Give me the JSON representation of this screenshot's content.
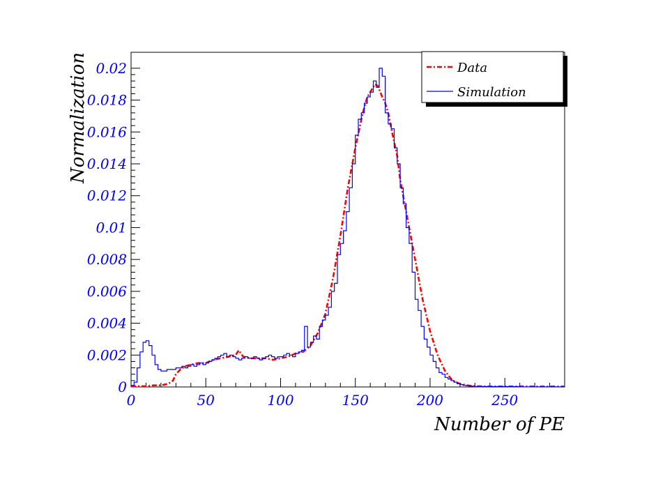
{
  "chart_data": {
    "type": "line",
    "title": "",
    "xlabel": "Number of PE",
    "ylabel": "Normalization",
    "xlim": [
      0,
      290
    ],
    "ylim": [
      0,
      0.021
    ],
    "x_ticks": [
      "0",
      "50",
      "100",
      "150",
      "200",
      "250"
    ],
    "y_ticks": [
      "0",
      "0.002",
      "0.004",
      "0.006",
      "0.008",
      "0.01",
      "0.012",
      "0.014",
      "0.016",
      "0.018",
      "0.02"
    ],
    "legend_position": "top-right",
    "grid": false,
    "colors": {
      "tick_labels": "#0000ff",
      "data": "#ff0000",
      "simulation": "#0000ff"
    },
    "series": [
      {
        "name": "Data",
        "style": "dash-dot",
        "color": "#ff0000",
        "x": [
          0,
          5,
          10,
          15,
          20,
          25,
          28,
          30,
          33,
          36,
          40,
          45,
          50,
          55,
          60,
          65,
          70,
          72,
          75,
          80,
          85,
          90,
          95,
          100,
          105,
          110,
          115,
          120,
          125,
          130,
          135,
          140,
          145,
          150,
          155,
          158,
          160,
          163,
          165,
          168,
          170,
          172,
          175,
          178,
          180,
          185,
          190,
          195,
          200,
          205,
          210,
          215,
          220,
          225,
          230,
          240,
          250,
          260,
          270,
          280,
          290
        ],
        "y": [
          5e-05,
          5e-05,
          5e-05,
          0.0001,
          0.0001,
          0.0002,
          0.0004,
          0.0008,
          0.0011,
          0.0013,
          0.0014,
          0.0015,
          0.0015,
          0.0017,
          0.0018,
          0.0019,
          0.002,
          0.0023,
          0.0019,
          0.0018,
          0.0018,
          0.0018,
          0.0017,
          0.0018,
          0.0019,
          0.0021,
          0.0022,
          0.0026,
          0.0034,
          0.0046,
          0.0068,
          0.0095,
          0.0125,
          0.015,
          0.0172,
          0.0182,
          0.0185,
          0.019,
          0.0189,
          0.0182,
          0.0178,
          0.0172,
          0.0158,
          0.0145,
          0.013,
          0.0105,
          0.008,
          0.0055,
          0.0035,
          0.002,
          0.001,
          0.0004,
          0.0002,
          0.0001,
          5e-05,
          3e-05,
          3e-05,
          4e-05,
          3e-05,
          3e-05,
          3e-05
        ]
      },
      {
        "name": "Simulation",
        "style": "step",
        "color": "#0000ff",
        "x": [
          0,
          2,
          4,
          6,
          8,
          10,
          12,
          14,
          16,
          18,
          20,
          22,
          24,
          26,
          28,
          30,
          32,
          34,
          36,
          38,
          40,
          42,
          44,
          46,
          48,
          50,
          52,
          54,
          56,
          58,
          60,
          62,
          64,
          66,
          68,
          70,
          72,
          74,
          76,
          78,
          80,
          82,
          84,
          86,
          88,
          90,
          92,
          94,
          96,
          98,
          100,
          102,
          104,
          106,
          108,
          110,
          112,
          114,
          116,
          118,
          120,
          122,
          124,
          126,
          128,
          130,
          132,
          134,
          136,
          138,
          140,
          142,
          144,
          146,
          148,
          150,
          152,
          154,
          156,
          158,
          160,
          162,
          164,
          166,
          168,
          170,
          172,
          174,
          176,
          178,
          180,
          182,
          184,
          186,
          188,
          190,
          192,
          194,
          196,
          198,
          200,
          202,
          204,
          206,
          208,
          210,
          212,
          214,
          216,
          218,
          220,
          222,
          224,
          226,
          228,
          230,
          235,
          240,
          245,
          250,
          260,
          270,
          280,
          290
        ],
        "y": [
          0.0001,
          0.0003,
          0.0012,
          0.0022,
          0.0028,
          0.0029,
          0.0026,
          0.002,
          0.0014,
          0.0011,
          0.001,
          0.001,
          0.0011,
          0.0011,
          0.0011,
          0.0012,
          0.0012,
          0.0013,
          0.0012,
          0.0013,
          0.0014,
          0.0013,
          0.0014,
          0.0015,
          0.0014,
          0.0015,
          0.0016,
          0.0017,
          0.0018,
          0.0019,
          0.002,
          0.0021,
          0.0019,
          0.002,
          0.0019,
          0.0018,
          0.0017,
          0.0018,
          0.0019,
          0.0018,
          0.0018,
          0.0019,
          0.0018,
          0.0017,
          0.0018,
          0.0019,
          0.002,
          0.0019,
          0.0018,
          0.0019,
          0.0019,
          0.002,
          0.0021,
          0.002,
          0.0019,
          0.0021,
          0.0022,
          0.0023,
          0.0038,
          0.0025,
          0.0028,
          0.0032,
          0.003,
          0.0038,
          0.0042,
          0.0045,
          0.005,
          0.006,
          0.0065,
          0.0083,
          0.009,
          0.0098,
          0.011,
          0.0125,
          0.014,
          0.0158,
          0.0168,
          0.0172,
          0.0178,
          0.0182,
          0.0185,
          0.0192,
          0.0188,
          0.02,
          0.0195,
          0.0172,
          0.0165,
          0.0162,
          0.015,
          0.014,
          0.0125,
          0.0115,
          0.01,
          0.009,
          0.0072,
          0.0055,
          0.0048,
          0.0038,
          0.003,
          0.0025,
          0.002,
          0.0016,
          0.0012,
          0.0009,
          0.0008,
          0.0006,
          0.0005,
          0.0004,
          0.0003,
          0.0002,
          0.00015,
          0.0001,
          8e-05,
          5e-05,
          5e-05,
          3e-05,
          3e-05,
          2e-05,
          2e-05,
          2e-05,
          1e-05,
          1e-05,
          1e-05,
          1e-05
        ]
      }
    ]
  }
}
